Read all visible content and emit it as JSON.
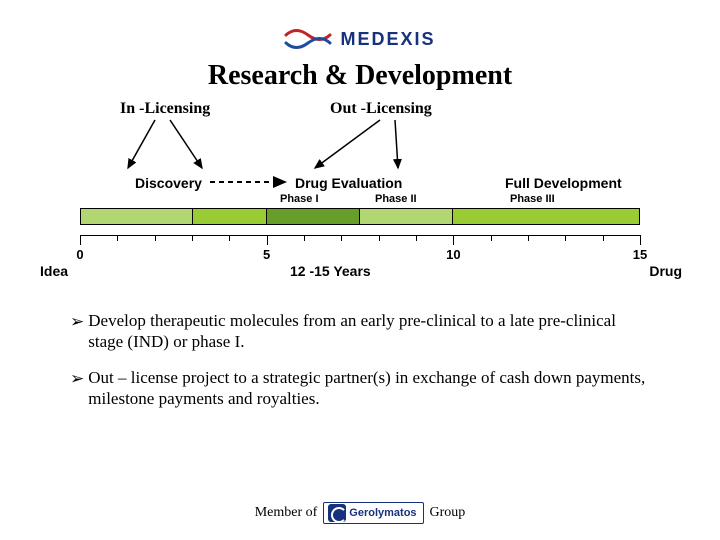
{
  "logo": {
    "text": "MEDEXIS",
    "color": "#16317d",
    "mark_colors": [
      "#c02424",
      "#1e4aa0"
    ]
  },
  "title": "Research & Development",
  "licensing": {
    "in": "In -Licensing",
    "out": "Out -Licensing"
  },
  "stages": {
    "discovery": "Discovery",
    "drug_eval": "Drug Evaluation",
    "full_dev": "Full Development"
  },
  "phases": [
    "Phase I",
    "Phase II",
    "Phase III"
  ],
  "bar": {
    "segments": [
      {
        "width_pct": 20.0,
        "color": "#b2d672"
      },
      {
        "width_pct": 13.3,
        "color": "#99cc33"
      },
      {
        "width_pct": 16.7,
        "color": "#679e2a"
      },
      {
        "width_pct": 16.7,
        "color": "#b2d672"
      },
      {
        "width_pct": 33.3,
        "color": "#99cc33"
      }
    ]
  },
  "axis": {
    "min": 0,
    "max": 15,
    "big_ticks": [
      0,
      5,
      10,
      15
    ],
    "labels": [
      {
        "v": 0,
        "text": "0"
      },
      {
        "v": 5,
        "text": "5"
      },
      {
        "v": 10,
        "text": "10"
      },
      {
        "v": 15,
        "text": "15"
      }
    ]
  },
  "idea_label": "Idea",
  "drug_label": "Drug",
  "years_label": "12 -15 Years",
  "bullets": [
    "Develop therapeutic molecules from an early pre-clinical to a late pre-clinical stage (IND) or phase I.",
    "Out – license project to a strategic partner(s) in exchange of cash down payments, milestone payments and royalties."
  ],
  "footer": {
    "member_of": "Member of",
    "group": "Group",
    "partner": "Gerolymatos",
    "partner_color": "#16317d"
  }
}
